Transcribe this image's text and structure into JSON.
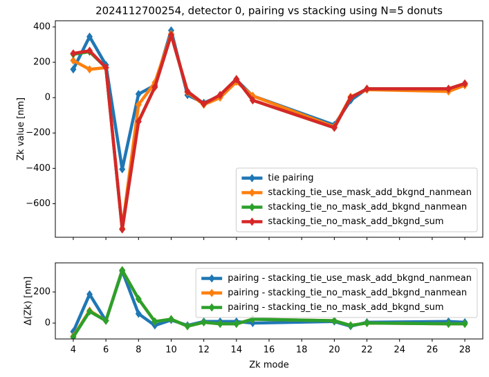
{
  "chart_data": [
    {
      "type": "line",
      "title": "2024112700254, detector 0, pairing vs stacking using N=5 donuts",
      "ylabel": "Zk value [nm]",
      "x": [
        4,
        5,
        6,
        7,
        8,
        9,
        10,
        11,
        12,
        13,
        14,
        15,
        20,
        21,
        22,
        27,
        28
      ],
      "series": [
        {
          "name": "tie pairing",
          "color": "#1f77b4",
          "values": [
            160,
            345,
            185,
            -405,
            20,
            70,
            380,
            15,
            -30,
            10,
            100,
            10,
            -155,
            -15,
            50,
            45,
            75
          ]
        },
        {
          "name": "stacking_tie_use_mask_add_bkgnd_nanmean",
          "color": "#ff7f0e",
          "values": [
            210,
            160,
            170,
            -740,
            -40,
            85,
            360,
            30,
            -40,
            0,
            90,
            10,
            -165,
            5,
            45,
            35,
            70
          ]
        },
        {
          "name": "stacking_tie_no_mask_add_bkgnd_nanmean",
          "color": "#2ca02c",
          "values": [
            245,
            260,
            170,
            -745,
            -135,
            60,
            355,
            35,
            -35,
            15,
            105,
            -15,
            -170,
            0,
            50,
            50,
            80
          ]
        },
        {
          "name": "stacking_tie_no_mask_add_bkgnd_sum",
          "color": "#d62728",
          "values": [
            250,
            265,
            170,
            -745,
            -135,
            60,
            355,
            35,
            -35,
            15,
            105,
            -15,
            -170,
            0,
            50,
            50,
            80
          ]
        }
      ],
      "xlim": [
        2.9,
        29.1
      ],
      "xticks": [
        4,
        6,
        8,
        10,
        12,
        14,
        16,
        18,
        20,
        22,
        24,
        26,
        28
      ],
      "ylim": [
        -790,
        435
      ],
      "yticks": [
        {
          "value": -600,
          "label": "−600"
        },
        {
          "value": -400,
          "label": "−400"
        },
        {
          "value": -200,
          "label": "−200"
        },
        0,
        200,
        400
      ],
      "legend": "lower right"
    },
    {
      "type": "line",
      "xlabel": "Zk mode",
      "ylabel": "Δ(Zk) [nm]",
      "x": [
        4,
        5,
        6,
        7,
        8,
        9,
        10,
        11,
        12,
        13,
        14,
        15,
        20,
        21,
        22,
        27,
        28
      ],
      "series": [
        {
          "name": "pairing -  stacking_tie_use_mask_add_bkgnd_nanmean",
          "color": "#1f77b4",
          "values": [
            -55,
            185,
            15,
            335,
            60,
            -15,
            20,
            -15,
            10,
            10,
            10,
            0,
            10,
            -20,
            5,
            10,
            5
          ]
        },
        {
          "name": "pairing -  stacking_tie_no_mask_add_bkgnd_nanmean",
          "color": "#ff7f0e",
          "values": [
            -85,
            80,
            15,
            340,
            155,
            10,
            25,
            -20,
            5,
            -5,
            -5,
            25,
            15,
            -15,
            0,
            -5,
            -5
          ]
        },
        {
          "name": "pairing -  stacking_tie_no_mask_add_bkgnd_sum",
          "color": "#2ca02c",
          "values": [
            -90,
            75,
            15,
            340,
            155,
            10,
            25,
            -20,
            5,
            -5,
            -5,
            25,
            15,
            -15,
            0,
            -5,
            -5
          ]
        }
      ],
      "xlim": [
        2.9,
        29.1
      ],
      "xticks": [
        4,
        6,
        8,
        10,
        12,
        14,
        16,
        18,
        20,
        22,
        24,
        26,
        28
      ],
      "ylim": [
        -102,
        387
      ],
      "yticks": [
        0,
        200
      ],
      "legend": "upper right"
    }
  ]
}
